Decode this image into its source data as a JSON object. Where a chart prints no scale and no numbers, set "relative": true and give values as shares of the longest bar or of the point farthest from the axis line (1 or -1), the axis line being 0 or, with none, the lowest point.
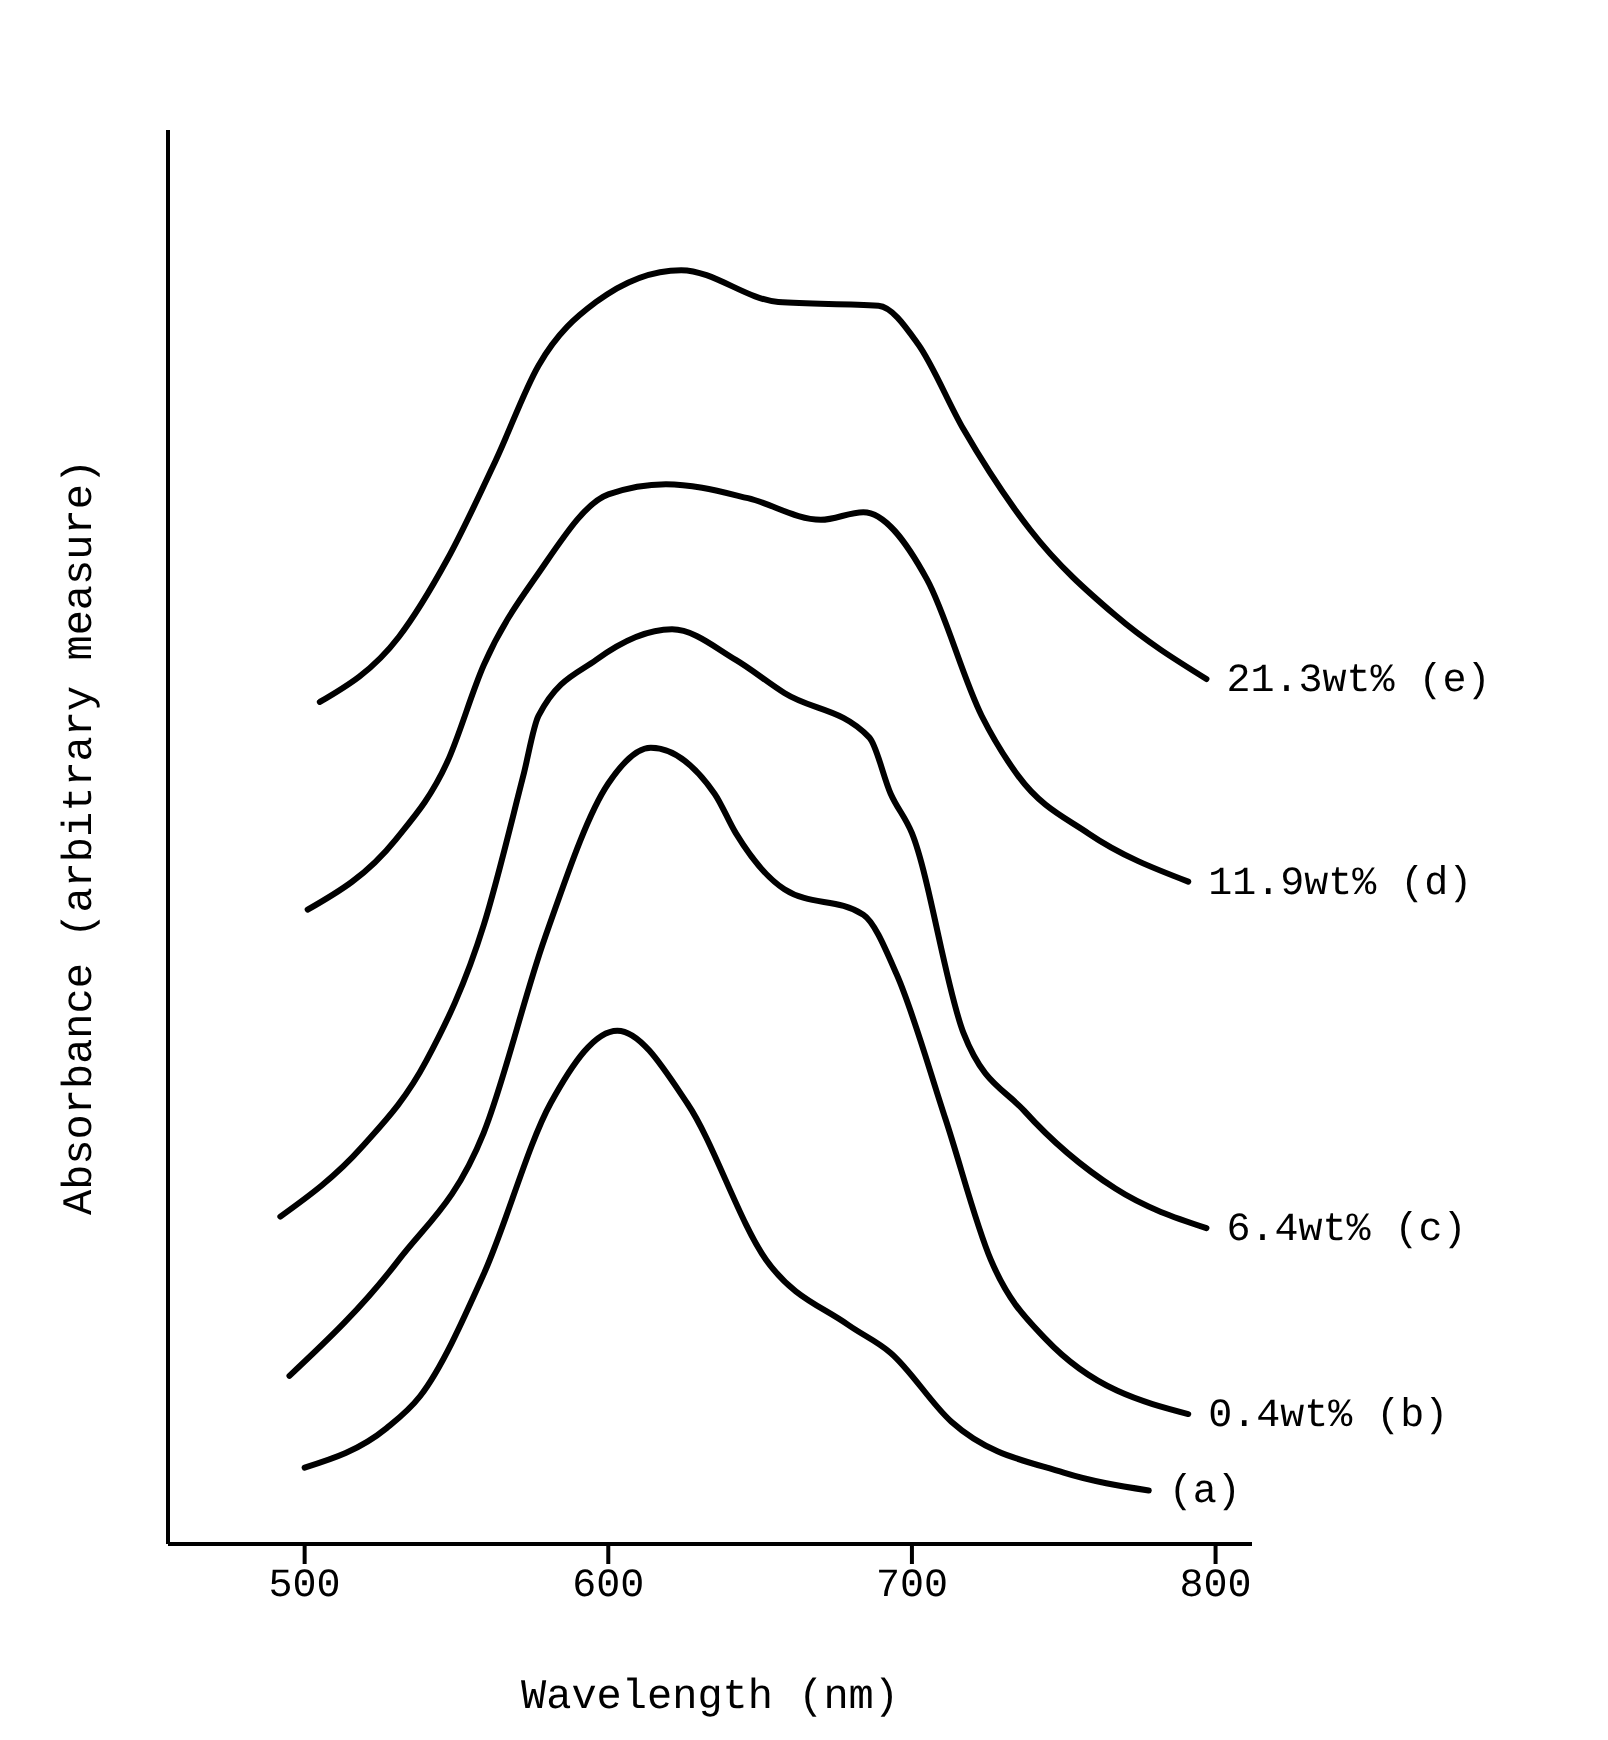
{
  "chart_data": {
    "type": "line",
    "xlabel": "Wavelength (nm)",
    "ylabel": "Absorbance (arbitrary measure)",
    "xlim": [
      455,
      812
    ],
    "xticks": [
      500,
      600,
      700,
      800
    ],
    "relative": true,
    "marker": "none",
    "line_style": "solid",
    "series": [
      {
        "name": "21.3wt% (e)",
        "color": "#000000",
        "x": [
          505,
          531,
          547,
          563,
          577,
          596,
          624,
          656,
          689,
          702,
          717,
          739,
          767,
          797
        ],
        "values": [
          0.661,
          0.712,
          0.773,
          0.851,
          0.925,
          0.975,
          1.0,
          0.975,
          0.972,
          0.942,
          0.875,
          0.796,
          0.729,
          0.679
        ]
      },
      {
        "name": "11.9wt% (d)",
        "color": "#000000",
        "x": [
          501,
          530,
          547,
          559,
          577,
          600,
          619,
          646,
          670,
          684,
          705,
          723,
          735,
          758,
          791
        ],
        "values": [
          0.498,
          0.553,
          0.614,
          0.69,
          0.762,
          0.824,
          0.832,
          0.821,
          0.804,
          0.81,
          0.757,
          0.65,
          0.603,
          0.558,
          0.52
        ]
      },
      {
        "name": "6.4wt% (c)",
        "color": "#000000",
        "x": [
          492,
          519,
          540,
          559,
          572,
          577,
          596,
          621,
          642,
          658,
          686,
          693,
          700,
          717,
          737,
          767,
          797
        ],
        "values": [
          0.257,
          0.312,
          0.379,
          0.486,
          0.603,
          0.65,
          0.694,
          0.718,
          0.694,
          0.668,
          0.633,
          0.589,
          0.558,
          0.401,
          0.34,
          0.279,
          0.248
        ]
      },
      {
        "name": "0.4wt% (b)",
        "color": "#000000",
        "x": [
          495,
          531,
          559,
          579,
          600,
          614,
          635,
          642,
          658,
          684,
          695,
          711,
          726,
          744,
          791
        ],
        "values": [
          0.132,
          0.223,
          0.323,
          0.475,
          0.597,
          0.625,
          0.589,
          0.558,
          0.514,
          0.494,
          0.447,
          0.334,
          0.223,
          0.161,
          0.102
        ]
      },
      {
        "name": "(a)",
        "color": "#000000",
        "x": [
          500,
          527,
          538,
          559,
          581,
          603,
          626,
          652,
          679,
          693,
          713,
          750,
          778
        ],
        "values": [
          0.06,
          0.091,
          0.116,
          0.212,
          0.346,
          0.403,
          0.346,
          0.223,
          0.172,
          0.15,
          0.096,
          0.056,
          0.042
        ]
      }
    ]
  }
}
